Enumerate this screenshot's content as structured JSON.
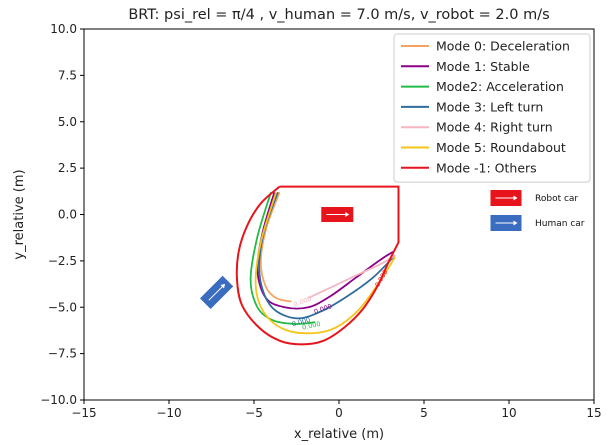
{
  "chart_data": {
    "type": "line",
    "title": "BRT: psi_rel = π/4 , v_human = 7.0 m/s, v_robot = 2.0 m/s",
    "xlabel": "x_relative (m)",
    "ylabel": "y_relative (m)",
    "xlim": [
      -15,
      15
    ],
    "ylim": [
      -10,
      10
    ],
    "x_ticks": [
      -15,
      -10,
      -5,
      0,
      5,
      10,
      15
    ],
    "y_ticks": [
      -10.0,
      -7.5,
      -5.0,
      -2.5,
      0.0,
      2.5,
      5.0,
      7.5,
      10.0
    ],
    "x_tick_labels": [
      "−15",
      "−10",
      "−5",
      "0",
      "5",
      "10",
      "15"
    ],
    "y_tick_labels": [
      "−10.0",
      "−7.5",
      "−5.0",
      "−2.5",
      "0.0",
      "2.5",
      "5.0",
      "7.5",
      "10.0"
    ],
    "grid": false,
    "legend_position": "top-right",
    "series": [
      {
        "name": "Mode 0: Deceleration",
        "color": "#f4a460",
        "contour_label": "",
        "points": [
          [
            -3.5,
            1.2
          ],
          [
            -4.3,
            -0.8
          ],
          [
            -4.6,
            -2.6
          ],
          [
            -4.3,
            -3.9
          ],
          [
            -3.7,
            -4.5
          ],
          [
            -2.8,
            -4.7
          ]
        ]
      },
      {
        "name": "Mode 1: Stable",
        "color": "#8b008b",
        "contour_label": "0.000",
        "points": [
          [
            -3.8,
            1.2
          ],
          [
            -4.5,
            -1.0
          ],
          [
            -4.8,
            -3.0
          ],
          [
            -4.3,
            -4.5
          ],
          [
            -3.2,
            -5.0
          ],
          [
            -1.8,
            -5.0
          ],
          [
            -0.5,
            -4.4
          ],
          [
            1.0,
            -3.4
          ],
          [
            2.5,
            -2.4
          ],
          [
            3.2,
            -2.0
          ]
        ]
      },
      {
        "name": "Mode2: Acceleration",
        "color": "#22bb44",
        "contour_label": "0.000",
        "points": [
          [
            -4.0,
            1.2
          ],
          [
            -4.8,
            -1.2
          ],
          [
            -5.2,
            -3.5
          ],
          [
            -4.8,
            -5.0
          ],
          [
            -3.9,
            -5.7
          ],
          [
            -2.6,
            -5.9
          ],
          [
            -1.4,
            -5.8
          ]
        ]
      },
      {
        "name": "Mode 3: Left turn",
        "color": "#2e6e9e",
        "contour_label": "0.000",
        "points": [
          [
            -3.6,
            1.2
          ],
          [
            -4.4,
            -0.9
          ],
          [
            -4.7,
            -2.8
          ],
          [
            -4.4,
            -4.3
          ],
          [
            -3.7,
            -5.2
          ],
          [
            -2.4,
            -5.6
          ],
          [
            -1.0,
            -5.2
          ],
          [
            0.5,
            -4.4
          ],
          [
            2.0,
            -3.4
          ],
          [
            3.3,
            -2.2
          ]
        ]
      },
      {
        "name": "Mode 4: Right turn",
        "color": "#f4b6c2",
        "contour_label": "0.000",
        "points": [
          [
            -1.8,
            -4.5
          ],
          [
            -0.4,
            -3.9
          ],
          [
            1.2,
            -3.2
          ],
          [
            2.6,
            -2.6
          ],
          [
            3.3,
            -2.2
          ]
        ]
      },
      {
        "name": "Mode 5: Roundabout",
        "color": "#f5c518",
        "contour_label": "",
        "points": [
          [
            -3.7,
            1.2
          ],
          [
            -4.6,
            -1.5
          ],
          [
            -4.9,
            -3.8
          ],
          [
            -4.4,
            -5.3
          ],
          [
            -3.2,
            -6.2
          ],
          [
            -1.6,
            -6.4
          ],
          [
            -0.2,
            -6.1
          ],
          [
            1.2,
            -5.1
          ],
          [
            2.4,
            -3.6
          ],
          [
            3.3,
            -2.3
          ]
        ]
      },
      {
        "name": "Mode -1: Others",
        "color": "#e8141c",
        "contour_label": "0.000",
        "points": [
          [
            -3.5,
            1.5
          ],
          [
            3.5,
            1.5
          ],
          [
            3.5,
            -1.5
          ],
          [
            2.9,
            -2.6
          ],
          [
            2.3,
            -3.8
          ],
          [
            1.4,
            -5.1
          ],
          [
            0.3,
            -6.1
          ],
          [
            -0.9,
            -6.8
          ],
          [
            -2.2,
            -7.0
          ],
          [
            -3.5,
            -6.8
          ],
          [
            -4.7,
            -6.1
          ],
          [
            -5.7,
            -4.9
          ],
          [
            -6.0,
            -3.5
          ],
          [
            -5.9,
            -2.0
          ],
          [
            -5.4,
            -0.6
          ],
          [
            -4.6,
            0.6
          ],
          [
            -3.5,
            1.5
          ]
        ]
      }
    ],
    "annotations": {
      "robot_car": {
        "label": "Robot car",
        "color": "#e8141c"
      },
      "human_car": {
        "label": "Human car",
        "color": "#3a6cc0"
      }
    }
  }
}
